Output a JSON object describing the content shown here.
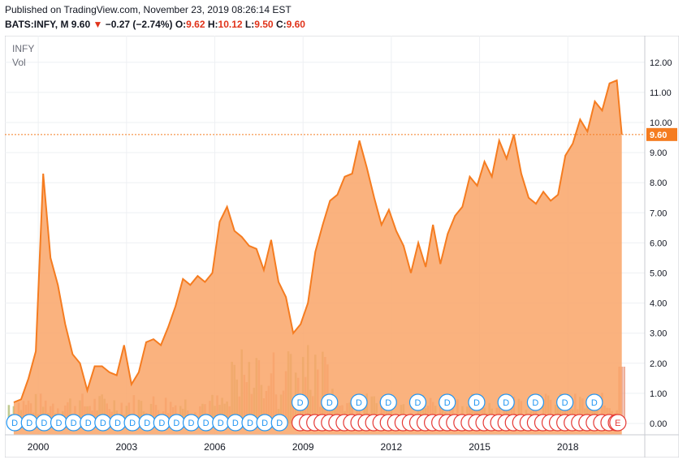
{
  "header": {
    "published": "Published on TradingView.com, November 23, 2019 08:26:14 EST",
    "symbol": "BATS:INFY, M",
    "last": "9.60",
    "change": "−0.27 (−2.74%)",
    "o_label": "O:",
    "o": "9.62",
    "h_label": "H:",
    "h": "10.12",
    "l_label": "L:",
    "l": "9.50",
    "c_label": "C:",
    "c": "9.60"
  },
  "legend": {
    "symbol": "INFY",
    "vol": "Vol"
  },
  "colors": {
    "line": "#f57c20",
    "area": "#f9a467",
    "last_price_tag": "#f57c20",
    "vol_up": "#a9b86b",
    "vol_down": "#e8967a",
    "dividend": "#2196f3",
    "earnings": "#e53935",
    "arrow_down": "#e0331a"
  },
  "chart_data": {
    "type": "area",
    "title": "INFY",
    "frequency": "monthly",
    "x": [
      "1999-03",
      "1999-06",
      "1999-09",
      "1999-12",
      "2000-03",
      "2000-06",
      "2000-09",
      "2000-12",
      "2001-03",
      "2001-06",
      "2001-09",
      "2001-12",
      "2002-03",
      "2002-06",
      "2002-09",
      "2002-12",
      "2003-03",
      "2003-06",
      "2003-09",
      "2003-12",
      "2004-03",
      "2004-06",
      "2004-09",
      "2004-12",
      "2005-03",
      "2005-06",
      "2005-09",
      "2005-12",
      "2006-03",
      "2006-06",
      "2006-09",
      "2006-12",
      "2007-03",
      "2007-06",
      "2007-09",
      "2007-12",
      "2008-03",
      "2008-06",
      "2008-09",
      "2008-12",
      "2009-03",
      "2009-06",
      "2009-09",
      "2009-12",
      "2010-03",
      "2010-06",
      "2010-09",
      "2010-12",
      "2011-03",
      "2011-06",
      "2011-09",
      "2011-12",
      "2012-03",
      "2012-06",
      "2012-09",
      "2012-12",
      "2013-03",
      "2013-06",
      "2013-09",
      "2013-12",
      "2014-03",
      "2014-06",
      "2014-09",
      "2014-12",
      "2015-03",
      "2015-06",
      "2015-09",
      "2015-12",
      "2016-03",
      "2016-06",
      "2016-09",
      "2016-12",
      "2017-03",
      "2017-06",
      "2017-09",
      "2017-12",
      "2018-03",
      "2018-06",
      "2018-09",
      "2018-12",
      "2019-03",
      "2019-06",
      "2019-09",
      "2019-11"
    ],
    "values": [
      0.7,
      0.8,
      1.5,
      2.4,
      8.3,
      5.5,
      4.6,
      3.3,
      2.3,
      2.0,
      1.1,
      1.9,
      1.9,
      1.7,
      1.6,
      2.6,
      1.3,
      1.7,
      2.7,
      2.8,
      2.6,
      3.2,
      3.9,
      4.8,
      4.6,
      4.9,
      4.7,
      5.0,
      6.7,
      7.2,
      6.4,
      6.2,
      5.9,
      5.8,
      5.1,
      6.1,
      4.7,
      4.2,
      3.0,
      3.3,
      4.0,
      5.7,
      6.6,
      7.4,
      7.6,
      8.2,
      8.3,
      9.4,
      8.5,
      7.5,
      6.6,
      7.1,
      6.4,
      5.9,
      5.0,
      6.0,
      5.2,
      6.6,
      5.3,
      6.3,
      6.9,
      7.2,
      8.2,
      7.9,
      8.7,
      8.2,
      9.4,
      8.8,
      9.6,
      8.3,
      7.5,
      7.3,
      7.7,
      7.4,
      7.6,
      8.9,
      9.3,
      10.1,
      9.7,
      10.7,
      10.4,
      11.3,
      11.4,
      9.6
    ],
    "volume_marker_labels": {
      "dividend": "D",
      "earnings": "E"
    },
    "x_ticks": [
      "2000",
      "2003",
      "2006",
      "2009",
      "2012",
      "2015",
      "2018"
    ],
    "y_ticks": [
      "0.00",
      "1.00",
      "2.00",
      "3.00",
      "4.00",
      "5.00",
      "6.00",
      "7.00",
      "8.00",
      "9.00",
      "10.00",
      "11.00",
      "12.00"
    ],
    "ylim": [
      -0.5,
      12.5
    ],
    "last_price": "9.60",
    "grid": true
  }
}
